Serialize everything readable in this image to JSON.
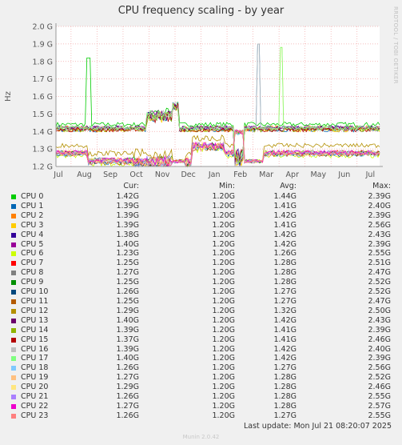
{
  "colors": {
    "bg": "#f0f0f0",
    "plot_bg": "#ffffff",
    "grid": "#f2a7a7",
    "axis": "#999999"
  },
  "chart_data": {
    "type": "line",
    "title": "CPU frequency scaling - by year",
    "ylabel": "Hz",
    "xlabel": "",
    "ylim": [
      1.2,
      2.0
    ],
    "yticks": [
      "1.2 G",
      "1.3 G",
      "1.4 G",
      "1.5 G",
      "1.6 G",
      "1.7 G",
      "1.8 G",
      "1.9 G",
      "2.0 G"
    ],
    "xticks": [
      "Jul",
      "Aug",
      "Sep",
      "Oct",
      "Nov",
      "Dec",
      "Jan",
      "Feb",
      "Mar",
      "Apr",
      "May",
      "Jun",
      "Jul"
    ],
    "grid": true,
    "legend_headers": [
      "Cur:",
      "Min:",
      "Avg:",
      "Max:"
    ],
    "series": [
      {
        "name": "CPU 0",
        "color": "#00cc00",
        "cur": "1.42G",
        "min": "1.20G",
        "avg": "1.44G",
        "max": "2.39G"
      },
      {
        "name": "CPU 1",
        "color": "#0066b3",
        "cur": "1.39G",
        "min": "1.20G",
        "avg": "1.41G",
        "max": "2.40G"
      },
      {
        "name": "CPU 2",
        "color": "#ff8000",
        "cur": "1.39G",
        "min": "1.20G",
        "avg": "1.42G",
        "max": "2.39G"
      },
      {
        "name": "CPU 3",
        "color": "#ffcc00",
        "cur": "1.39G",
        "min": "1.20G",
        "avg": "1.41G",
        "max": "2.56G"
      },
      {
        "name": "CPU 4",
        "color": "#330099",
        "cur": "1.38G",
        "min": "1.20G",
        "avg": "1.42G",
        "max": "2.43G"
      },
      {
        "name": "CPU 5",
        "color": "#990099",
        "cur": "1.40G",
        "min": "1.20G",
        "avg": "1.42G",
        "max": "2.39G"
      },
      {
        "name": "CPU 6",
        "color": "#ccff00",
        "cur": "1.23G",
        "min": "1.20G",
        "avg": "1.26G",
        "max": "2.55G"
      },
      {
        "name": "CPU 7",
        "color": "#ff0000",
        "cur": "1.25G",
        "min": "1.20G",
        "avg": "1.28G",
        "max": "2.51G"
      },
      {
        "name": "CPU 8",
        "color": "#808080",
        "cur": "1.27G",
        "min": "1.20G",
        "avg": "1.28G",
        "max": "2.47G"
      },
      {
        "name": "CPU 9",
        "color": "#008f00",
        "cur": "1.25G",
        "min": "1.20G",
        "avg": "1.28G",
        "max": "2.52G"
      },
      {
        "name": "CPU 10",
        "color": "#00487d",
        "cur": "1.26G",
        "min": "1.20G",
        "avg": "1.27G",
        "max": "2.52G"
      },
      {
        "name": "CPU 11",
        "color": "#b35a00",
        "cur": "1.25G",
        "min": "1.20G",
        "avg": "1.27G",
        "max": "2.47G"
      },
      {
        "name": "CPU 12",
        "color": "#b38f00",
        "cur": "1.29G",
        "min": "1.20G",
        "avg": "1.32G",
        "max": "2.50G"
      },
      {
        "name": "CPU 13",
        "color": "#6b006b",
        "cur": "1.40G",
        "min": "1.20G",
        "avg": "1.42G",
        "max": "2.43G"
      },
      {
        "name": "CPU 14",
        "color": "#8fb300",
        "cur": "1.39G",
        "min": "1.20G",
        "avg": "1.41G",
        "max": "2.39G"
      },
      {
        "name": "CPU 15",
        "color": "#b30000",
        "cur": "1.37G",
        "min": "1.20G",
        "avg": "1.41G",
        "max": "2.46G"
      },
      {
        "name": "CPU 16",
        "color": "#bebebe",
        "cur": "1.39G",
        "min": "1.20G",
        "avg": "1.42G",
        "max": "2.40G"
      },
      {
        "name": "CPU 17",
        "color": "#80ff80",
        "cur": "1.40G",
        "min": "1.20G",
        "avg": "1.42G",
        "max": "2.39G"
      },
      {
        "name": "CPU 18",
        "color": "#80c9ff",
        "cur": "1.26G",
        "min": "1.20G",
        "avg": "1.27G",
        "max": "2.56G"
      },
      {
        "name": "CPU 19",
        "color": "#ffc080",
        "cur": "1.27G",
        "min": "1.20G",
        "avg": "1.28G",
        "max": "2.52G"
      },
      {
        "name": "CPU 20",
        "color": "#ffe680",
        "cur": "1.29G",
        "min": "1.20G",
        "avg": "1.28G",
        "max": "2.46G"
      },
      {
        "name": "CPU 21",
        "color": "#aa80ff",
        "cur": "1.26G",
        "min": "1.20G",
        "avg": "1.28G",
        "max": "2.55G"
      },
      {
        "name": "CPU 22",
        "color": "#ee00cc",
        "cur": "1.27G",
        "min": "1.20G",
        "avg": "1.28G",
        "max": "2.57G"
      },
      {
        "name": "CPU 23",
        "color": "#ff8080",
        "cur": "1.26G",
        "min": "1.20G",
        "avg": "1.27G",
        "max": "2.55G"
      }
    ]
  },
  "side_text": "RRDTOOL / TOBI OETIKER",
  "last_update": "Last update:  Mon Jul 21 08:20:07 2025",
  "footer": "Munin 2.0.42"
}
